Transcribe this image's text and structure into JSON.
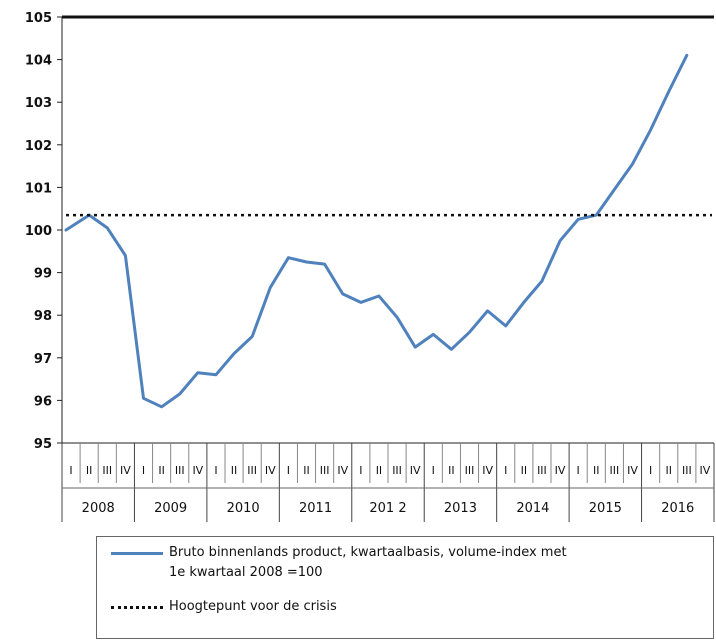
{
  "chart_data": {
    "type": "line",
    "title": "",
    "xlabel": "",
    "ylabel": "",
    "ylim": [
      95,
      105
    ],
    "yticks": [
      95,
      96,
      97,
      98,
      99,
      100,
      101,
      102,
      103,
      104,
      105
    ],
    "quarter_labels": [
      "I",
      "II",
      "III",
      "IV"
    ],
    "years": [
      "2008",
      "2009",
      "2010",
      "2011",
      "201 2",
      "2013",
      "2014",
      "2015",
      "2016"
    ],
    "series": [
      {
        "name": "Bruto binnenlands product, kwartaalbasis, volume-index met 1e kwartaal 2008 =100",
        "color": "#4f81bd",
        "style": "solid",
        "values": [
          100.0,
          100.35,
          100.05,
          99.4,
          96.05,
          95.85,
          96.15,
          96.65,
          96.6,
          97.1,
          97.5,
          98.65,
          99.35,
          99.25,
          99.2,
          98.5,
          98.3,
          98.45,
          97.95,
          97.25,
          97.55,
          97.2,
          97.6,
          98.1,
          97.75,
          98.3,
          98.8,
          99.75,
          100.25,
          100.35,
          100.95,
          101.55,
          102.35,
          103.25,
          104.1
        ]
      },
      {
        "name": "Hoogtepunt voor de crisis",
        "color": "#111111",
        "style": "dotted",
        "constant": 100.35
      }
    ],
    "grid": false
  },
  "legend": {
    "series1_line1": "Bruto binnenlands product, kwartaalbasis, volume-index met",
    "series1_line2": "1e kwartaal 2008 =100",
    "series2": "Hoogtepunt voor de crisis"
  }
}
